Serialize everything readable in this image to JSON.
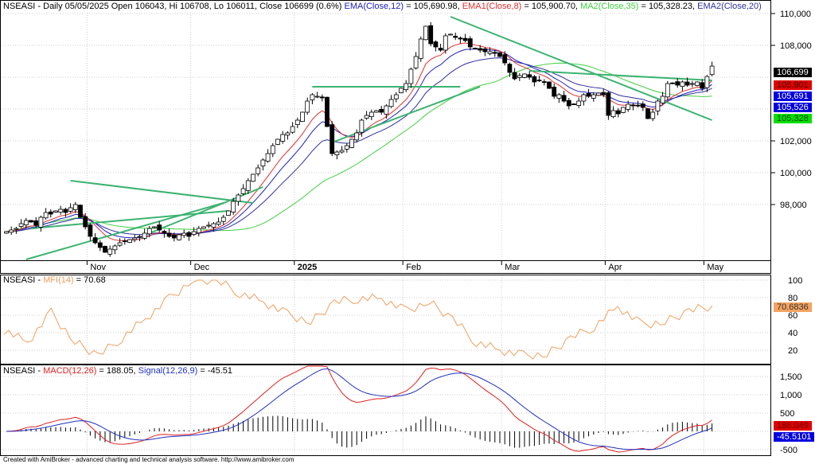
{
  "header": {
    "symbol": "NSEASI",
    "title": "NSEASI - Daily 05/05/2025 Open 106043, Hi 106708, Lo 106011, Close 106699 (0.6%)",
    "ema12": "EMA(Close,12)",
    "ema12_val": " = 105,690.98, ",
    "ema8": "EMA1(Close,8)",
    "ema8_val": " = 105,900.70, ",
    "ma35": "MA2(Close,35)",
    "ma35_val": " = 105,328.23, ",
    "ema20": "EMA2(Close,20)"
  },
  "mfi_header": {
    "prefix": "NSEASI - ",
    "name": "MFI(14)",
    "value": " = 70.68"
  },
  "macd_header": {
    "prefix": "NSEASI - ",
    "name": "MACD(12,26)",
    "value": " = 188.05, ",
    "signal": "Signal(12,26,9)",
    "signal_val": " = -45.51"
  },
  "footer": "Created with AmiBroker - advanced charting and technical analysis software. http://www.amibroker.com",
  "colors": {
    "ema12": "#2020c0",
    "ema8": "#e03030",
    "ma35": "#40d040",
    "ema20": "#3030a0",
    "mfi": "#f0a060",
    "trendline": "#3cb371",
    "macd": "#e02020",
    "signal": "#2030c0"
  },
  "tags": {
    "close": "106,699",
    "ema8": "105,901",
    "ema12": "105,691",
    "ema20": "105,526",
    "ma35": "105,328",
    "mfi": "70.6836",
    "macd": "188.049",
    "signal": "-45.5101"
  },
  "chart_data": [
    {
      "type": "candlestick",
      "ylim": [
        96500,
        110500
      ],
      "yticks": [
        "110,000",
        "108,000",
        "102,000",
        "100,000",
        "98,000"
      ],
      "xticks": [
        {
          "label": "Nov",
          "bar": 17
        },
        {
          "label": "Dec",
          "bar": 38
        },
        {
          "label": "2025",
          "bar": 59
        },
        {
          "label": "Feb",
          "bar": 81
        },
        {
          "label": "Mar",
          "bar": 101
        },
        {
          "label": "Apr",
          "bar": 122
        },
        {
          "label": "May",
          "bar": 142
        }
      ],
      "close": [
        96300,
        96400,
        96500,
        96800,
        97000,
        96900,
        96700,
        97200,
        97500,
        97400,
        97600,
        97700,
        97500,
        97800,
        98000,
        97200,
        96600,
        96000,
        95600,
        95300,
        95000,
        95200,
        95400,
        95600,
        95700,
        95800,
        95900,
        96000,
        96200,
        96500,
        96600,
        96400,
        96200,
        96000,
        95900,
        96100,
        96200,
        96000,
        96300,
        96500,
        96600,
        96700,
        96800,
        96900,
        97200,
        97600,
        98200,
        98600,
        99000,
        99500,
        99900,
        100300,
        100800,
        101200,
        101700,
        102100,
        102400,
        102500,
        102900,
        103300,
        103800,
        104500,
        104900,
        104800,
        104700,
        102900,
        101200,
        101300,
        101400,
        101700,
        102100,
        102500,
        103300,
        103600,
        103800,
        103900,
        103800,
        104200,
        104600,
        104900,
        105300,
        105600,
        106500,
        107300,
        108400,
        109200,
        108100,
        107900,
        107700,
        108600,
        108700,
        108500,
        108400,
        108300,
        107900,
        107800,
        107700,
        107600,
        107600,
        107500,
        107300,
        106900,
        106300,
        105900,
        106100,
        106200,
        106000,
        105700,
        105800,
        105700,
        105300,
        104800,
        104900,
        104500,
        104200,
        104300,
        104500,
        104900,
        104800,
        104900,
        105000,
        104900,
        103600,
        103900,
        103700,
        104100,
        104300,
        104200,
        104200,
        104100,
        103400,
        103800,
        104500,
        104800,
        105600,
        105600,
        105500,
        105700,
        105500,
        105600,
        105700,
        105300,
        106043,
        106699
      ]
    },
    {
      "type": "line",
      "name": "MFI(14)",
      "yticks": [
        "100",
        "80",
        "60",
        "40",
        "20"
      ],
      "values": [
        43,
        29,
        63,
        29,
        14,
        34,
        56,
        79,
        100,
        100,
        85,
        75,
        61,
        52,
        75,
        79,
        79,
        65,
        75,
        56,
        29,
        20,
        14,
        15,
        34,
        47,
        70,
        49,
        52,
        65,
        70.68
      ]
    },
    {
      "type": "line+histogram",
      "yticks": [
        "1,500",
        "1,000",
        "500",
        "-500"
      ],
      "series": [
        {
          "name": "MACD(12,26)"
        },
        {
          "name": "Signal(12,26,9)"
        }
      ]
    }
  ]
}
